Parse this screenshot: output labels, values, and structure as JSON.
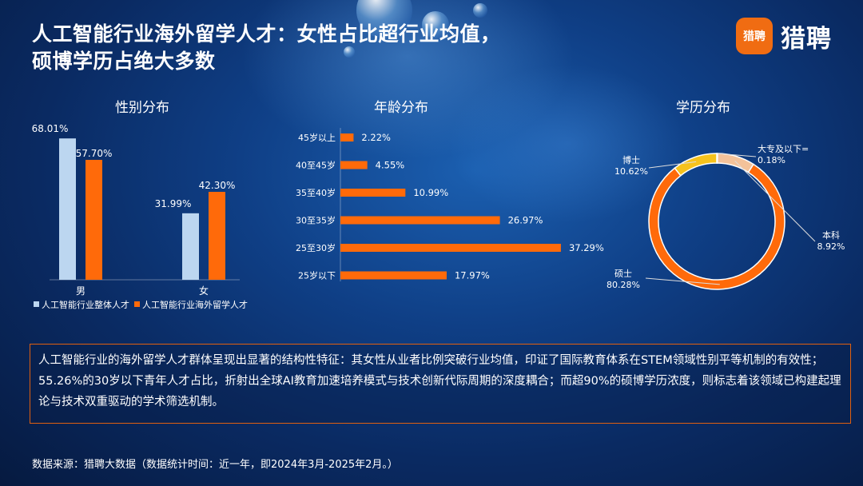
{
  "header": {
    "title_line1": "人工智能行业海外留学人才：女性占比超行业均值，",
    "title_line2": "硕博学历占绝大多数",
    "logo_icon_text": "猎聘",
    "logo_text": "猎聘"
  },
  "colors": {
    "light_blue": "#bcd6f0",
    "orange": "#ff6a0a",
    "yellow": "#f6c21c",
    "peach": "#f3c29a"
  },
  "chart_data": [
    {
      "type": "bar",
      "title": "性别分布",
      "categories": [
        "男",
        "女"
      ],
      "series": [
        {
          "name": "人工智能行业整体人才",
          "values": [
            68.01,
            31.99
          ],
          "labels": [
            "68.01%",
            "31.99%"
          ],
          "color": "#bcd6f0"
        },
        {
          "name": "人工智能行业海外留学人才",
          "values": [
            57.7,
            42.3
          ],
          "labels": [
            "57.70%",
            "42.30%"
          ],
          "color": "#ff6a0a"
        }
      ],
      "legend": "bottom",
      "ylim": [
        0,
        75
      ]
    },
    {
      "type": "bar",
      "orientation": "horizontal",
      "title": "年龄分布",
      "categories": [
        "45岁以上",
        "40至45岁",
        "35至40岁",
        "30至35岁",
        "25至30岁",
        "25岁以下"
      ],
      "values": [
        2.22,
        4.55,
        10.99,
        26.97,
        37.29,
        17.97
      ],
      "labels": [
        "2.22%",
        "4.55%",
        "10.99%",
        "26.97%",
        "37.29%",
        "17.97%"
      ],
      "color": "#ff6a0a"
    },
    {
      "type": "pie",
      "donut": true,
      "title": "学历分布",
      "slices": [
        {
          "name": "大专及以下=",
          "value": 0.18,
          "label": "0.18%",
          "color": "#bcd6f0"
        },
        {
          "name": "本科",
          "value": 8.92,
          "label": "8.92%",
          "color": "#f3c29a"
        },
        {
          "name": "硕士",
          "value": 80.28,
          "label": "80.28%",
          "color": "#ff6a0a"
        },
        {
          "name": "博士",
          "value": 10.62,
          "label": "10.62%",
          "color": "#f6c21c"
        }
      ]
    }
  ],
  "summary": "人工智能行业的海外留学人才群体呈现出显著的结构性特征：其女性从业者比例突破行业均值，印证了国际教育体系在STEM领域性别平等机制的有效性；55.26%的30岁以下青年人才占比，折射出全球AI教育加速培养模式与技术创新代际周期的深度耦合；而超90%的硕博学历浓度，则标志着该领域已构建起理论与技术双重驱动的学术筛选机制。",
  "source": "数据来源：猎聘大数据（数据统计时间：近一年，即2024年3月-2025年2月。）"
}
